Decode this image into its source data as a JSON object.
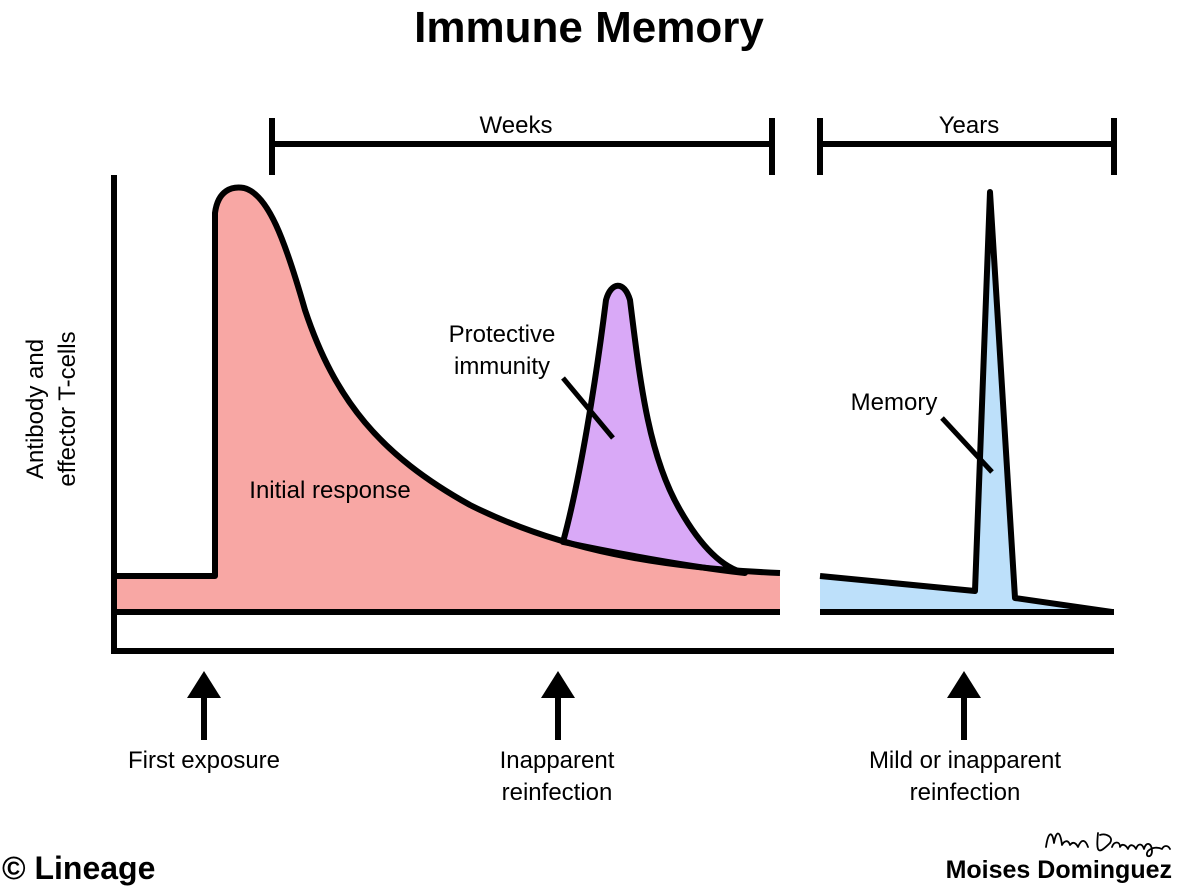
{
  "title": "Immune Memory",
  "scale_labels": {
    "weeks": "Weeks",
    "years": "Years"
  },
  "y_axis_label": [
    "Antibody and",
    "effector T-cells"
  ],
  "curve_labels": {
    "initial_response": "Initial response",
    "protective_immunity": [
      "Protective",
      "immunity"
    ],
    "memory": "Memory"
  },
  "events": {
    "first_exposure": "First exposure",
    "inapparent_reinfection": [
      "Inapparent",
      "reinfection"
    ],
    "mild_reinfection": [
      "Mild or inapparent",
      "reinfection"
    ]
  },
  "footer": {
    "copyright": "© Lineage",
    "author": "Moises Dominguez",
    "signature": "Moises Dominguez"
  },
  "colors": {
    "initial_response_fill": "#f8a7a4",
    "protective_immunity_fill": "#d9a9f7",
    "memory_fill": "#bde0fa",
    "stroke": "#000000"
  }
}
